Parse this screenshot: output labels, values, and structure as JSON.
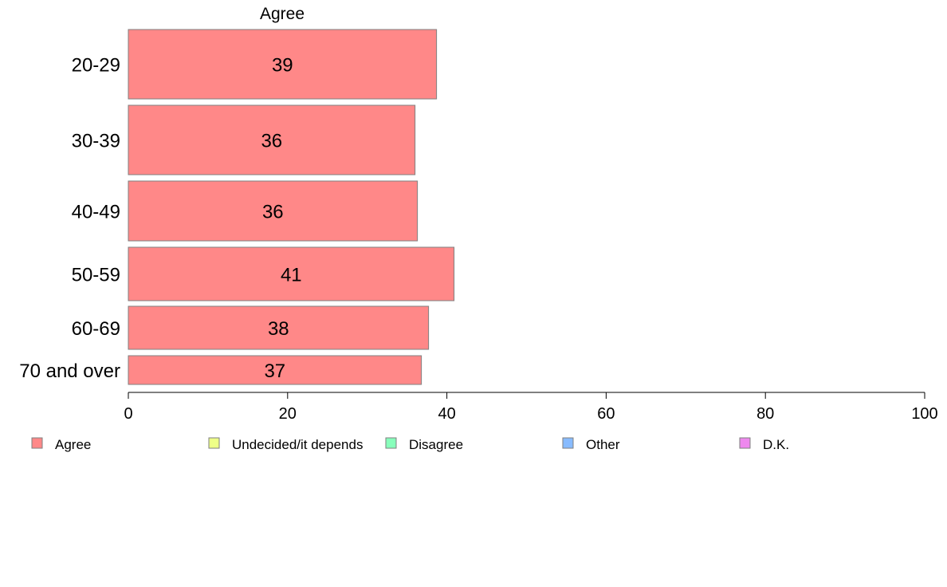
{
  "chart_data": {
    "type": "bar",
    "orientation": "horizontal",
    "stacked": true,
    "series_title": "Agree",
    "categories": [
      "20-29",
      "30-39",
      "40-49",
      "50-59",
      "60-69",
      "70 and over"
    ],
    "series": [
      {
        "name": "Agree",
        "color": "#ff8888",
        "values": [
          38.7,
          36.0,
          36.3,
          40.9,
          37.7,
          36.8
        ],
        "labels": [
          "39",
          "36",
          "36",
          "41",
          "38",
          "37"
        ]
      }
    ],
    "xlim": [
      0,
      100
    ],
    "xticks": [
      0,
      20,
      40,
      60,
      80,
      100
    ],
    "xtick_labels": [
      "0",
      "20",
      "40",
      "60",
      "80",
      "100"
    ],
    "grid": false,
    "legend": {
      "placement": "bottom",
      "entries": [
        {
          "label": "Agree",
          "color": "#ff8888"
        },
        {
          "label": "Undecided/it depends",
          "color": "#eeff88"
        },
        {
          "label": "Disagree",
          "color": "#88ffbb"
        },
        {
          "label": "Other",
          "color": "#88bbff"
        },
        {
          "label": "D.K.",
          "color": "#ee88ee"
        }
      ]
    }
  }
}
